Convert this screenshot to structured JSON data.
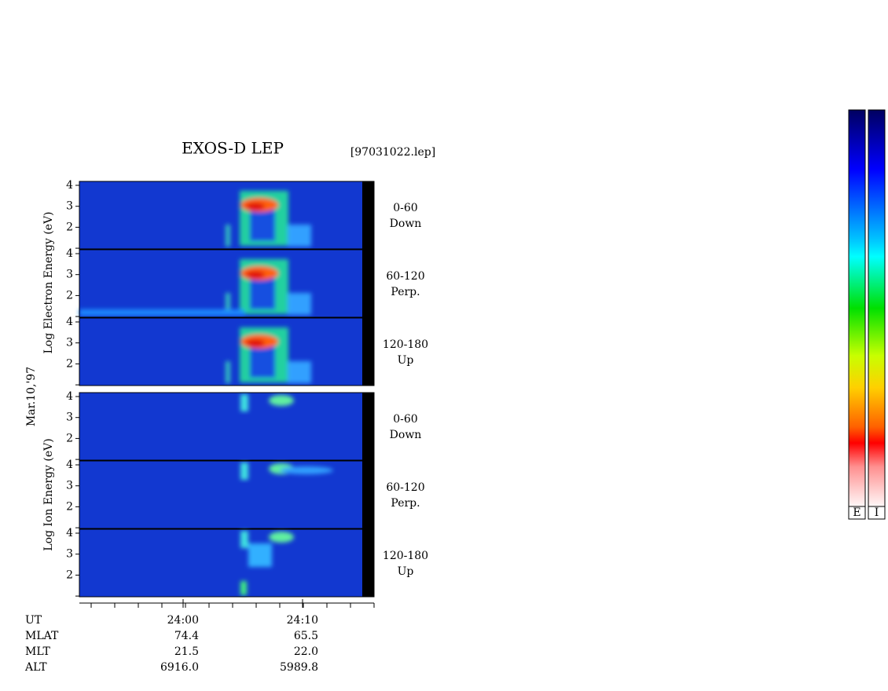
{
  "header": {
    "title": "EXOS-D LEP",
    "file": "[97031022.lep]",
    "date": "Mar.10,'97"
  },
  "electron": {
    "axis_label": "Log Electron Energy (eV)",
    "panels": [
      {
        "range": "0-60",
        "direction": "Down"
      },
      {
        "range": "60-120",
        "direction": "Perp."
      },
      {
        "range": "120-180",
        "direction": "Up"
      }
    ]
  },
  "ion": {
    "axis_label": "Log Ion Energy (eV)",
    "panels": [
      {
        "range": "0-60",
        "direction": "Down"
      },
      {
        "range": "60-120",
        "direction": "Perp."
      },
      {
        "range": "120-180",
        "direction": "Up"
      }
    ]
  },
  "energy_ticks": [
    "4",
    "3",
    "2"
  ],
  "ephemeris": {
    "rows": [
      {
        "name": "UT",
        "values": [
          "24:00",
          "24:10"
        ]
      },
      {
        "name": "MLAT",
        "values": [
          "74.4",
          "65.5"
        ]
      },
      {
        "name": "MLT",
        "values": [
          "21.5",
          "22.0"
        ]
      },
      {
        "name": "ALT",
        "values": [
          "6916.0",
          "5989.8"
        ]
      }
    ]
  },
  "colorbars": [
    "E",
    "I"
  ]
}
